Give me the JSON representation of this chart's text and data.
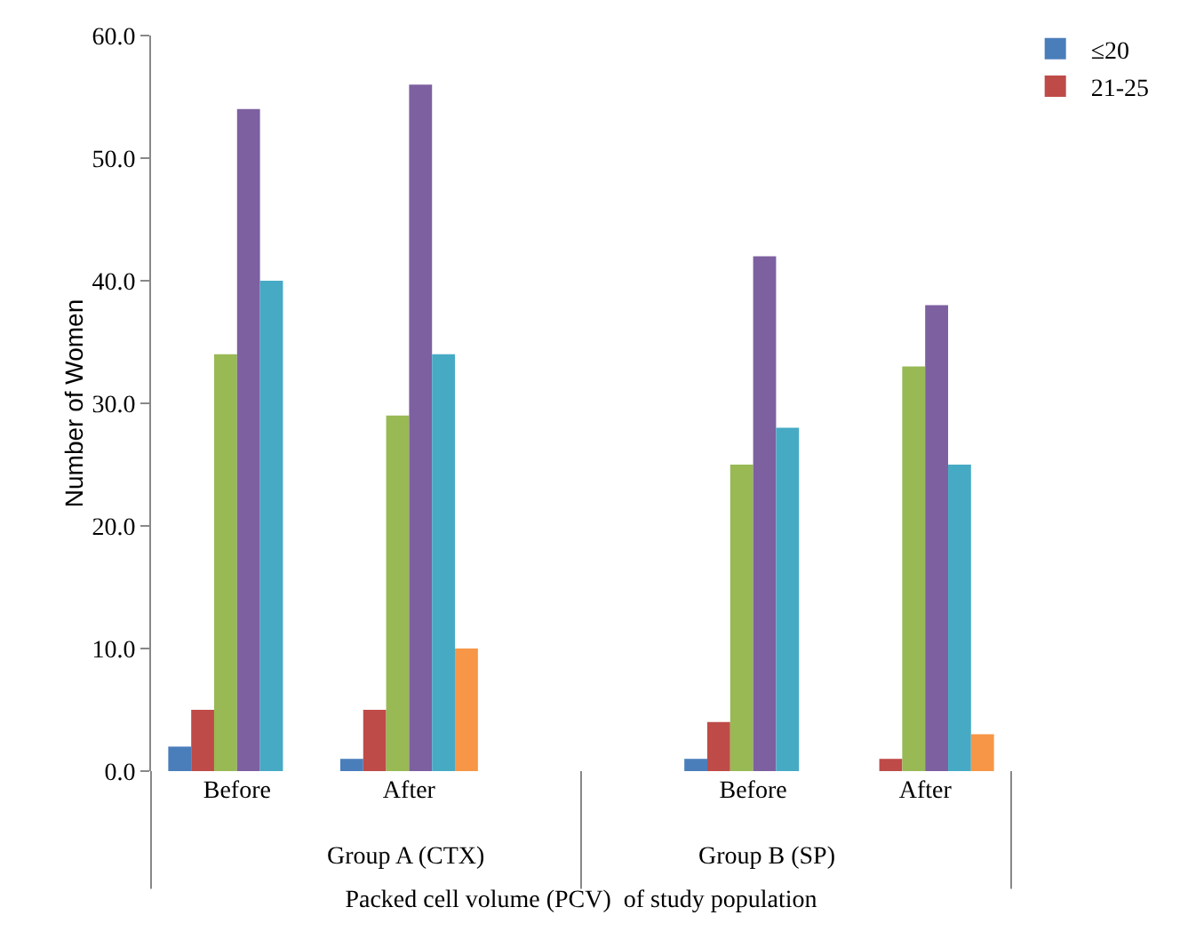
{
  "chart_data": {
    "type": "bar",
    "xlabel": "Packed cell volume (PCV)  of study population",
    "ylabel": "Number of Women",
    "categories": [
      "Before",
      "After",
      null,
      "Before",
      "After"
    ],
    "series": [
      {
        "name": "≤20",
        "color": "#4a7ebb",
        "values": [
          2,
          1,
          null,
          1,
          0
        ]
      },
      {
        "name": "21-25",
        "color": "#be4b48",
        "values": [
          5,
          5,
          null,
          4,
          1
        ]
      },
      {
        "color": "#98b954",
        "values": [
          34,
          29,
          null,
          25,
          33
        ]
      },
      {
        "color": "#7d60a0",
        "values": [
          54,
          56,
          null,
          42,
          38
        ]
      },
      {
        "color": "#46aac5",
        "values": [
          40,
          34,
          null,
          28,
          25
        ]
      },
      {
        "color": "#f79646",
        "values": [
          0,
          10,
          null,
          0,
          3
        ]
      }
    ],
    "annotations": [
      "Group A (CTX)",
      "Group B (SP)"
    ],
    "ylim": [
      0,
      60
    ],
    "yticks": [
      {
        "value": 0,
        "label": "0.0"
      },
      {
        "value": 10,
        "label": "10.0"
      },
      {
        "value": 20,
        "label": "20.0"
      },
      {
        "value": 30,
        "label": "30.0"
      },
      {
        "value": 40,
        "label": "40.0"
      },
      {
        "value": 50,
        "label": "50.0"
      },
      {
        "value": 60,
        "label": "60.0"
      }
    ],
    "grid": false,
    "legend": "top right"
  }
}
